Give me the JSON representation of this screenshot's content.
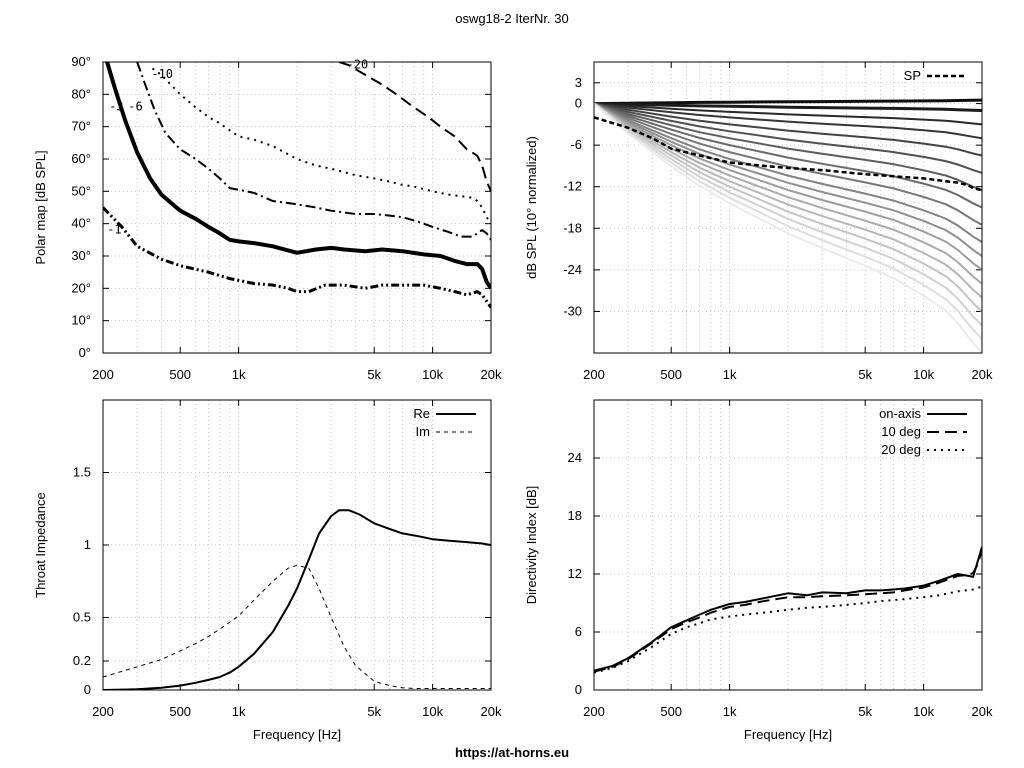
{
  "title": "oswg18-2 IterNr. 30",
  "footer": "https://at-horns.eu",
  "chart_data": [
    {
      "id": "polar",
      "type": "contour",
      "title": "",
      "xlabel": "",
      "ylabel": "Polar map [dB SPL]",
      "xscale": "log",
      "xlim": [
        200,
        20000
      ],
      "ylim": [
        0,
        90
      ],
      "xticks": [
        200,
        500,
        1000,
        5000,
        10000,
        20000
      ],
      "xticklabels": [
        "200",
        "500",
        "1k",
        "5k",
        "10k",
        "20k"
      ],
      "yticks": [
        0,
        10,
        20,
        30,
        40,
        50,
        60,
        70,
        80,
        90
      ],
      "yticklabels": [
        "0°",
        "10°",
        "20°",
        "30°",
        "40°",
        "50°",
        "60°",
        "70°",
        "80°",
        "90°"
      ],
      "grid": true,
      "series": [
        {
          "name": "-1",
          "style": "dash-dot-dot",
          "label_at": [
            210,
            37
          ],
          "x": [
            200,
            250,
            300,
            400,
            500,
            700,
            900,
            1200,
            1500,
            1800,
            2000,
            2300,
            2800,
            3500,
            4500,
            5500,
            7000,
            9000,
            11000,
            13000,
            15000,
            17000,
            18000,
            19000,
            20000
          ],
          "y": [
            45,
            39,
            33,
            29,
            27,
            25,
            23,
            21.5,
            21,
            20,
            19,
            19,
            21,
            21,
            20,
            21,
            21,
            21,
            20,
            19,
            18,
            19,
            18,
            16,
            14
          ]
        },
        {
          "name": "-3",
          "style": "thick",
          "label_at": [
            215,
            75
          ],
          "x": [
            210,
            230,
            260,
            300,
            350,
            400,
            500,
            600,
            700,
            800,
            900,
            1000,
            1200,
            1500,
            2000,
            2500,
            3000,
            3500,
            4500,
            5500,
            7000,
            9000,
            11000,
            13000,
            15000,
            17000,
            18000,
            19000,
            20000
          ],
          "y": [
            90,
            82,
            72,
            62,
            54,
            49,
            44,
            41.5,
            39,
            37,
            35,
            34.5,
            34,
            33,
            31,
            32,
            32.5,
            32,
            31.5,
            32,
            31.5,
            30.5,
            30,
            28.5,
            27.5,
            27.5,
            26,
            22,
            20
          ]
        },
        {
          "name": "-6",
          "style": "dash-dot",
          "label_at": [
            270,
            75
          ],
          "x": [
            300,
            330,
            370,
            420,
            500,
            600,
            700,
            800,
            900,
            1000,
            1200,
            1500,
            2000,
            2500,
            3000,
            4000,
            5000,
            6000,
            7000,
            8000,
            9000,
            10000,
            12000,
            14000,
            16000,
            17000,
            18000,
            19000,
            20000
          ],
          "y": [
            90,
            83,
            75,
            68,
            63,
            60,
            57,
            54,
            51,
            50.5,
            49.5,
            47,
            46,
            45,
            44,
            43,
            43,
            42.5,
            42,
            41,
            40,
            39,
            37.5,
            36,
            36,
            37,
            38,
            37,
            35
          ]
        },
        {
          "name": "-10",
          "style": "dotted",
          "label_at": [
            355,
            85
          ],
          "x": [
            360,
            400,
            500,
            600,
            700,
            800,
            1000,
            1200,
            1500,
            2000,
            2500,
            3000,
            4000,
            5000,
            6000,
            7000,
            8000,
            10000,
            12000,
            14000,
            16000,
            17000,
            18000,
            19000,
            20000
          ],
          "y": [
            88,
            86,
            80,
            76,
            73,
            71,
            67,
            66,
            64,
            60,
            58,
            57,
            55,
            54,
            53,
            52,
            51.5,
            50,
            49,
            48.5,
            48,
            47,
            45,
            42,
            40
          ]
        },
        {
          "name": "-20",
          "style": "long-dash",
          "label_at": [
            3600,
            88
          ],
          "x": [
            3300,
            3700,
            4500,
            5500,
            6500,
            8000,
            9500,
            11000,
            13000,
            15000,
            16000,
            17000,
            18000,
            19000,
            20000
          ],
          "y": [
            90,
            89,
            86,
            83,
            80,
            76,
            73,
            70,
            67,
            63,
            62,
            61,
            58,
            53,
            50
          ]
        }
      ]
    },
    {
      "id": "spl",
      "type": "line",
      "title": "",
      "xlabel": "",
      "ylabel": "dB SPL (10° normalized)",
      "xscale": "log",
      "xlim": [
        200,
        20000
      ],
      "ylim": [
        -36,
        6
      ],
      "xticks": [
        200,
        500,
        1000,
        5000,
        10000,
        20000
      ],
      "xticklabels": [
        "200",
        "500",
        "1k",
        "5k",
        "10k",
        "20k"
      ],
      "yticks": [
        3,
        0,
        -6,
        -12,
        -18,
        -24,
        -30
      ],
      "yticklabels": [
        "3",
        "0",
        "-6",
        "-12",
        "-18",
        "-24",
        "-30"
      ],
      "grid": true,
      "legend": "top-right",
      "legend_entries": [
        "SP"
      ],
      "family_shape": {
        "x": [
          200,
          300,
          500,
          700,
          1000,
          1500,
          2000,
          3000,
          5000,
          7000,
          10000,
          13000,
          15000,
          18000,
          20000
        ],
        "shape": [
          0,
          0.12,
          0.25,
          0.33,
          0.4,
          0.47,
          0.52,
          0.58,
          0.65,
          0.7,
          0.77,
          0.83,
          0.88,
          0.96,
          1.0
        ]
      },
      "family_endpoints": [
        0.5,
        -1,
        -3,
        -5,
        -7.5,
        -10,
        -12.5,
        -15,
        -17.5,
        -20,
        -22,
        -24,
        -26,
        -28,
        -30,
        -32,
        -34,
        -36
      ],
      "series": [
        {
          "name": "SP",
          "style": "dashed-thick",
          "x": [
            200,
            300,
            400,
            500,
            700,
            1000,
            1500,
            2000,
            3000,
            5000,
            7000,
            10000,
            13000,
            15000,
            17000,
            18000,
            20000
          ],
          "y": [
            -2,
            -3.5,
            -5,
            -6.5,
            -7.5,
            -8.5,
            -9,
            -9.3,
            -9.6,
            -10.2,
            -10.5,
            -10.8,
            -11.2,
            -11.4,
            -11.8,
            -12.2,
            -12.5
          ]
        }
      ]
    },
    {
      "id": "impedance",
      "type": "line",
      "title": "",
      "xlabel": "Frequency [Hz]",
      "ylabel": "Throat Impedance",
      "xscale": "log",
      "xlim": [
        200,
        20000
      ],
      "ylim": [
        0,
        2
      ],
      "xticks": [
        200,
        500,
        1000,
        5000,
        10000,
        20000
      ],
      "xticklabels": [
        "200",
        "500",
        "1k",
        "5k",
        "10k",
        "20k"
      ],
      "yticks": [
        0,
        0.2,
        0.5,
        1,
        1.5
      ],
      "yticklabels": [
        "0",
        "0.2",
        "0.5",
        "1",
        "1.5"
      ],
      "grid": true,
      "legend": "top-right",
      "legend_entries": [
        "Re",
        "Im"
      ],
      "series": [
        {
          "name": "Re",
          "style": "solid",
          "x": [
            200,
            300,
            400,
            500,
            600,
            700,
            800,
            900,
            1000,
            1200,
            1500,
            1800,
            2000,
            2300,
            2600,
            3000,
            3300,
            3700,
            4200,
            5000,
            6000,
            7000,
            8500,
            10000,
            12000,
            15000,
            18000,
            20000
          ],
          "y": [
            0.0,
            0.005,
            0.015,
            0.03,
            0.05,
            0.07,
            0.09,
            0.12,
            0.16,
            0.25,
            0.4,
            0.58,
            0.7,
            0.9,
            1.08,
            1.2,
            1.24,
            1.24,
            1.21,
            1.15,
            1.11,
            1.08,
            1.06,
            1.04,
            1.03,
            1.02,
            1.01,
            1.0
          ]
        },
        {
          "name": "Im",
          "style": "dashed-thin",
          "x": [
            200,
            300,
            400,
            500,
            600,
            700,
            800,
            1000,
            1200,
            1500,
            1800,
            2000,
            2300,
            2600,
            3000,
            3500,
            4000,
            5000,
            6000,
            7000,
            8000,
            10000,
            15000,
            20000
          ],
          "y": [
            0.09,
            0.16,
            0.21,
            0.27,
            0.32,
            0.37,
            0.42,
            0.51,
            0.62,
            0.75,
            0.84,
            0.86,
            0.84,
            0.7,
            0.5,
            0.3,
            0.17,
            0.06,
            0.03,
            0.015,
            0.01,
            0.01,
            0.01,
            0.01
          ]
        }
      ]
    },
    {
      "id": "di",
      "type": "line",
      "title": "",
      "xlabel": "Frequency [Hz]",
      "ylabel": "Directivity Index [dB]",
      "xscale": "log",
      "xlim": [
        200,
        20000
      ],
      "ylim": [
        0,
        30
      ],
      "xticks": [
        200,
        500,
        1000,
        5000,
        10000,
        20000
      ],
      "xticklabels": [
        "200",
        "500",
        "1k",
        "5k",
        "10k",
        "20k"
      ],
      "yticks": [
        0,
        6,
        12,
        18,
        24
      ],
      "yticklabels": [
        "0",
        "6",
        "12",
        "18",
        "24"
      ],
      "grid": true,
      "legend": "top-right",
      "legend_entries": [
        "on-axis",
        "10 deg",
        "20 deg"
      ],
      "series": [
        {
          "name": "on-axis",
          "style": "solid",
          "x": [
            200,
            250,
            300,
            400,
            500,
            600,
            700,
            800,
            1000,
            1200,
            1500,
            2000,
            2500,
            3000,
            4000,
            5000,
            6000,
            7000,
            8000,
            10000,
            12000,
            15000,
            17000,
            18000,
            19000,
            20000
          ],
          "y": [
            2,
            2.5,
            3.3,
            5,
            6.5,
            7.2,
            7.8,
            8.3,
            8.9,
            9.1,
            9.5,
            10,
            9.8,
            10.1,
            10,
            10.3,
            10.3,
            10.4,
            10.5,
            10.8,
            11.3,
            12,
            11.8,
            11.7,
            13.3,
            14.8
          ]
        },
        {
          "name": "10 deg",
          "style": "long-dash",
          "x": [
            200,
            250,
            300,
            400,
            500,
            600,
            700,
            800,
            1000,
            1200,
            1500,
            2000,
            2500,
            3000,
            4000,
            5000,
            6000,
            7000,
            8000,
            10000,
            12000,
            15000,
            17000,
            18000,
            19000,
            20000
          ],
          "y": [
            1.9,
            2.4,
            3.2,
            4.9,
            6.3,
            7,
            7.5,
            8,
            8.6,
            8.8,
            9.2,
            9.6,
            9.6,
            9.7,
            9.8,
            9.9,
            10,
            10.1,
            10.3,
            10.6,
            11.1,
            11.8,
            11.9,
            12.1,
            13,
            14.5
          ]
        },
        {
          "name": "20 deg",
          "style": "dotted",
          "x": [
            200,
            250,
            300,
            400,
            500,
            600,
            700,
            800,
            1000,
            1200,
            1500,
            2000,
            2500,
            3000,
            4000,
            5000,
            6000,
            7000,
            8000,
            10000,
            12000,
            15000,
            18000,
            20000
          ],
          "y": [
            1.8,
            2.3,
            3,
            4.5,
            5.8,
            6.5,
            6.9,
            7.3,
            7.6,
            7.8,
            8,
            8.3,
            8.5,
            8.6,
            8.8,
            9,
            9.2,
            9.3,
            9.4,
            9.6,
            9.8,
            10.2,
            10.4,
            10.7
          ]
        }
      ]
    }
  ]
}
